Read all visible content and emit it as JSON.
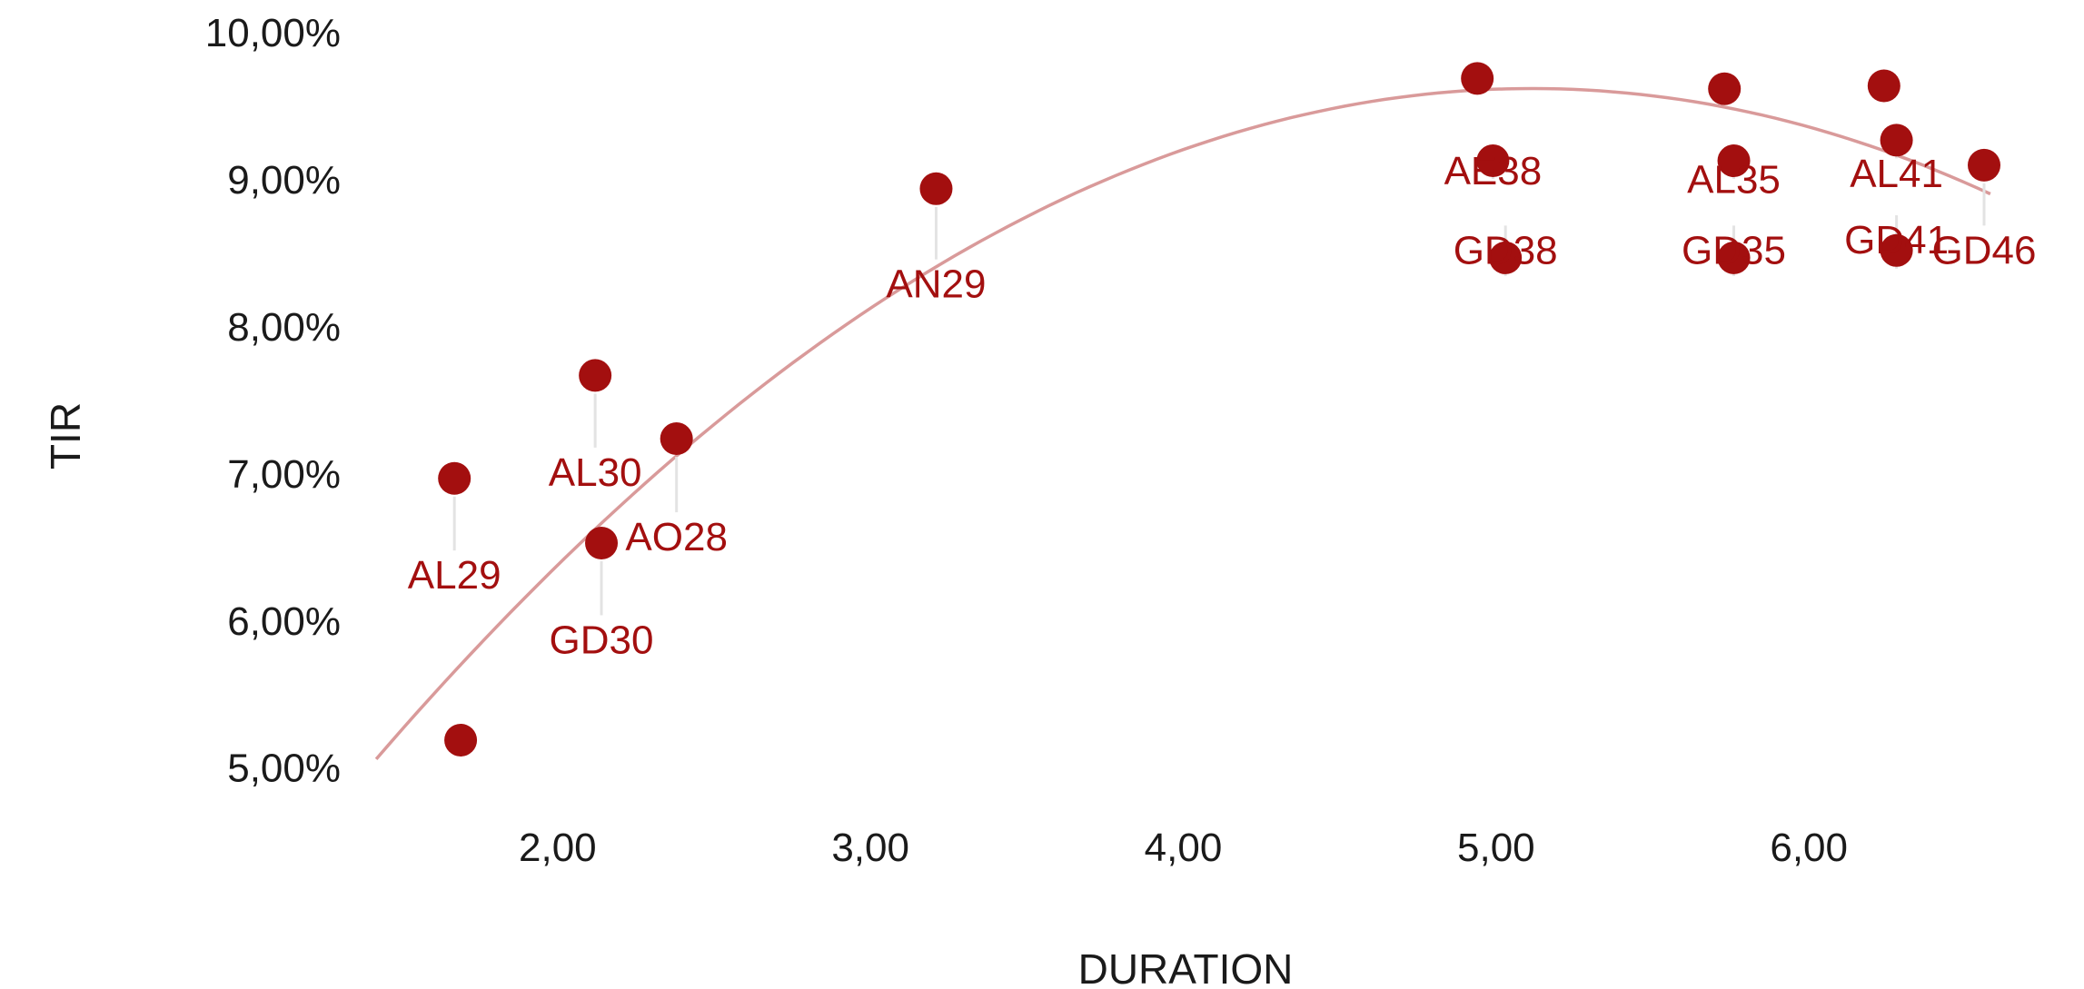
{
  "chart_data": {
    "type": "scatter",
    "title": "",
    "xlabel": "DURATION",
    "ylabel": "TIR",
    "xlim": [
      1.35,
      6.65
    ],
    "ylim": [
      4.85,
      10.1
    ],
    "x_ticks": [
      2,
      3,
      4,
      5,
      6
    ],
    "x_tick_labels": [
      "2,00",
      "3,00",
      "4,00",
      "5,00",
      "6,00"
    ],
    "y_ticks": [
      5,
      6,
      7,
      8,
      9,
      10
    ],
    "y_tick_labels": [
      "5,00%",
      "6,00%",
      "7,00%",
      "8,00%",
      "9,00%",
      "10,00%"
    ],
    "grid": false,
    "legend": "none",
    "colors": {
      "point": "#a30f0f",
      "label": "#a30f0f",
      "trend": "#d99a9a",
      "connector": "#e3e3e3"
    },
    "points": [
      {
        "label": "AL29",
        "x": 1.67,
        "y": 6.97,
        "label_y": 6.22
      },
      {
        "label": "",
        "x": 1.69,
        "y": 5.19
      },
      {
        "label": "AL30",
        "x": 2.12,
        "y": 7.67,
        "label_y": 6.92
      },
      {
        "label": "GD30",
        "x": 2.14,
        "y": 6.53,
        "label_y": 5.78
      },
      {
        "label": "AO28",
        "x": 2.38,
        "y": 7.24,
        "label_y": 6.48
      },
      {
        "label": "AN29",
        "x": 3.21,
        "y": 8.94,
        "label_y": 8.2
      },
      {
        "label": "",
        "x": 4.94,
        "y": 9.69
      },
      {
        "label": "AE38",
        "x": 4.99,
        "y": 9.13,
        "label_y": 8.97
      },
      {
        "label": "GD38",
        "x": 5.03,
        "y": 8.47,
        "label_y": 8.43
      },
      {
        "label": "",
        "x": 5.73,
        "y": 9.62
      },
      {
        "label": "AL35",
        "x": 5.76,
        "y": 9.13,
        "label_y": 8.91
      },
      {
        "label": "GD35",
        "x": 5.76,
        "y": 8.47,
        "label_y": 8.43
      },
      {
        "label": "",
        "x": 6.24,
        "y": 9.64
      },
      {
        "label": "AL41",
        "x": 6.28,
        "y": 9.27,
        "label_y": 8.95
      },
      {
        "label": "GD41",
        "x": 6.28,
        "y": 8.52,
        "label_y": 8.5
      },
      {
        "label": "GD46",
        "x": 6.56,
        "y": 9.1,
        "label_y": 8.43
      }
    ],
    "trendline": {
      "type": "quadratic",
      "coefficients": [
        0.882,
        3.417,
        -0.334
      ]
    }
  }
}
